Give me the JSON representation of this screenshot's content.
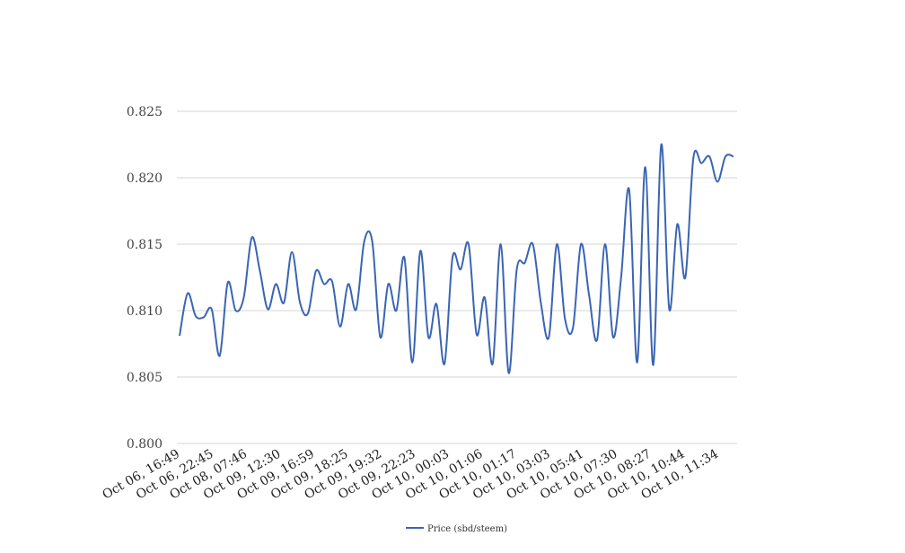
{
  "chart_data": {
    "type": "line",
    "title": "",
    "xlabel": "",
    "ylabel": "",
    "ylim": [
      0.8,
      0.825
    ],
    "y_ticks": [
      "0.800",
      "0.805",
      "0.810",
      "0.815",
      "0.820",
      "0.825"
    ],
    "grid": true,
    "legend_position": "bottom-center",
    "x_tick_labels": [
      "Oct 06, 16:49",
      "Oct 06, 22:45",
      "Oct 08, 07:46",
      "Oct 09, 12:30",
      "Oct 09, 16:59",
      "Oct 09, 18:25",
      "Oct 09, 19:32",
      "Oct 09, 22:23",
      "Oct 10, 00:03",
      "Oct 10, 01:06",
      "Oct 10, 01:17",
      "Oct 10, 03:03",
      "Oct 10, 05:41",
      "Oct 10, 07:30",
      "Oct 10, 08:27",
      "Oct 10, 10:44",
      "Oct 10, 11:34"
    ],
    "series": [
      {
        "name": "Price (sbd/steem)",
        "color": "#3a65b4",
        "values": [
          0.8081,
          0.8113,
          0.8096,
          0.8095,
          0.8101,
          0.8066,
          0.8121,
          0.81,
          0.811,
          0.8155,
          0.813,
          0.8101,
          0.812,
          0.8106,
          0.8144,
          0.8106,
          0.8098,
          0.813,
          0.812,
          0.8122,
          0.8088,
          0.812,
          0.8101,
          0.8152,
          0.8152,
          0.808,
          0.812,
          0.81,
          0.814,
          0.8061,
          0.8145,
          0.808,
          0.8105,
          0.806,
          0.814,
          0.8131,
          0.815,
          0.8082,
          0.811,
          0.806,
          0.815,
          0.8053,
          0.8131,
          0.8136,
          0.815,
          0.8106,
          0.808,
          0.815,
          0.8094,
          0.8087,
          0.815,
          0.8112,
          0.8078,
          0.815,
          0.808,
          0.8125,
          0.8191,
          0.8061,
          0.8208,
          0.8059,
          0.8225,
          0.8101,
          0.8165,
          0.8125,
          0.8215,
          0.8211,
          0.8216,
          0.8197,
          0.8216,
          0.8216
        ]
      }
    ]
  }
}
